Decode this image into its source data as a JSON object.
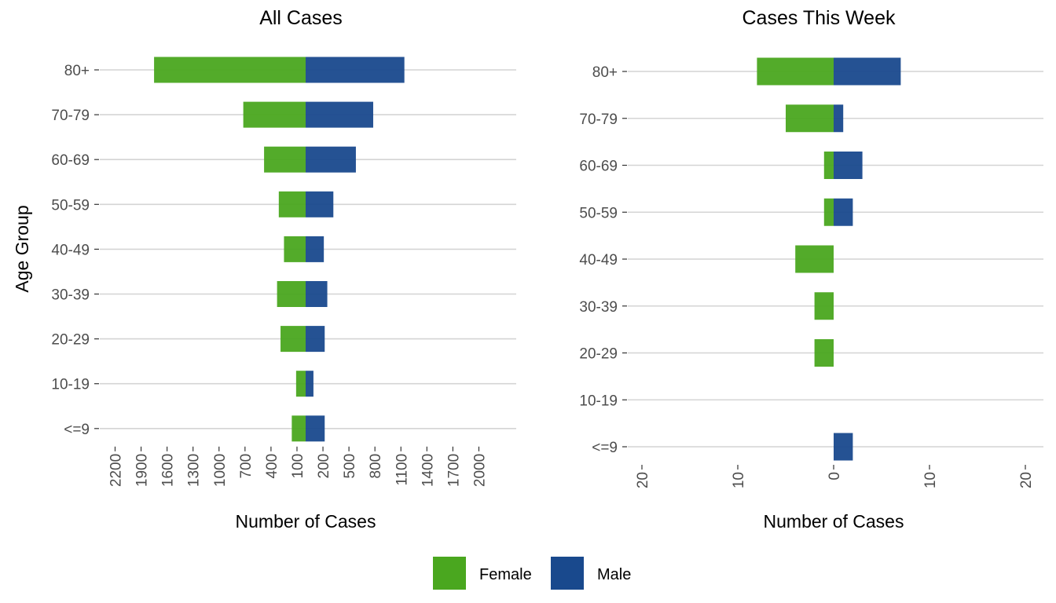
{
  "chart_data": [
    {
      "type": "bar",
      "orientation": "horizontal",
      "layout": "population-pyramid",
      "title": "All Cases",
      "xlabel": "Number of Cases",
      "ylabel": "Age Group",
      "categories": [
        "80+",
        "70-79",
        "60-69",
        "50-59",
        "40-49",
        "30-39",
        "20-29",
        "10-19",
        "<=9"
      ],
      "series": [
        {
          "name": "Female",
          "color": "#4aa71f",
          "values": [
            -1750,
            -720,
            -480,
            -310,
            -250,
            -330,
            -290,
            -110,
            -160
          ]
        },
        {
          "name": "Male",
          "color": "#19498d",
          "values": [
            1140,
            780,
            580,
            320,
            210,
            250,
            220,
            90,
            220
          ]
        }
      ],
      "xlim": [
        -2200,
        2100
      ],
      "xticks": [
        -2200,
        -1900,
        -1600,
        -1300,
        -1000,
        -700,
        -400,
        -100,
        200,
        500,
        800,
        1100,
        1400,
        1700,
        2000
      ],
      "xtick_labels": [
        "2200",
        "1900",
        "1600",
        "1300",
        "1000",
        "700",
        "400",
        "100",
        "200",
        "500",
        "800",
        "1100",
        "1400",
        "1700",
        "2000"
      ],
      "grid": "horizontal major lines only"
    },
    {
      "type": "bar",
      "orientation": "horizontal",
      "layout": "population-pyramid",
      "title": "Cases This Week",
      "xlabel": "Number of Cases",
      "ylabel": "",
      "categories": [
        "80+",
        "70-79",
        "60-69",
        "50-59",
        "40-49",
        "30-39",
        "20-29",
        "10-19",
        "<=9"
      ],
      "series": [
        {
          "name": "Female",
          "color": "#4aa71f",
          "values": [
            -8,
            -5,
            -1,
            -1,
            -4,
            -2,
            -2,
            0,
            0
          ]
        },
        {
          "name": "Male",
          "color": "#19498d",
          "values": [
            7,
            1,
            3,
            2,
            0,
            0,
            0,
            0,
            2
          ]
        }
      ],
      "xlim": [
        -22,
        22
      ],
      "xticks": [
        -20,
        -10,
        0,
        10,
        20
      ],
      "xtick_labels": [
        "20",
        "10",
        "0",
        "10",
        "20"
      ],
      "grid": "horizontal major lines only"
    }
  ],
  "legend": {
    "position": "bottom",
    "items": [
      {
        "label": "Female",
        "color": "#4aa71f"
      },
      {
        "label": "Male",
        "color": "#19498d"
      }
    ]
  }
}
